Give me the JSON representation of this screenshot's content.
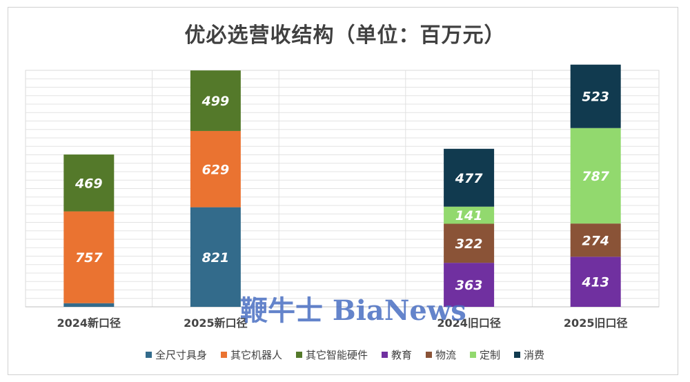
{
  "title": "优必选营收结构（单位：百万元）",
  "watermark": "鞭牛士 BiaNews",
  "chart_data": {
    "type": "bar",
    "stacked": true,
    "title": "优必选营收结构（单位：百万元）",
    "categories": [
      "2024新口径",
      "2025新口径",
      "",
      "2024旧口径",
      "2025旧口径"
    ],
    "ylim": [
      0,
      1950
    ],
    "grid": true,
    "legend_position": "bottom",
    "series": [
      {
        "name": "全尺寸具身",
        "color": "#336b8b",
        "values": [
          30,
          821,
          0,
          0,
          0
        ],
        "labels": [
          "",
          "821",
          "",
          "",
          ""
        ]
      },
      {
        "name": "其它机器人",
        "color": "#ea7331",
        "values": [
          757,
          629,
          0,
          0,
          0
        ],
        "labels": [
          "757",
          "629",
          "",
          "",
          ""
        ]
      },
      {
        "name": "其它智能硬件",
        "color": "#54792a",
        "values": [
          469,
          499,
          0,
          0,
          0
        ],
        "labels": [
          "469",
          "499",
          "",
          "",
          ""
        ]
      },
      {
        "name": "教育",
        "color": "#7030a0",
        "values": [
          0,
          0,
          0,
          363,
          413
        ],
        "labels": [
          "",
          "",
          "",
          "363",
          "413"
        ]
      },
      {
        "name": "物流",
        "color": "#8a5337",
        "values": [
          0,
          0,
          0,
          322,
          274
        ],
        "labels": [
          "",
          "",
          "",
          "322",
          "274"
        ]
      },
      {
        "name": "定制",
        "color": "#92d96e",
        "values": [
          0,
          0,
          0,
          141,
          787
        ],
        "labels": [
          "",
          "",
          "",
          "141",
          "787"
        ]
      },
      {
        "name": "消费",
        "color": "#113a4f",
        "values": [
          0,
          0,
          0,
          477,
          523
        ],
        "labels": [
          "",
          "",
          "",
          "477",
          "523"
        ]
      }
    ]
  }
}
